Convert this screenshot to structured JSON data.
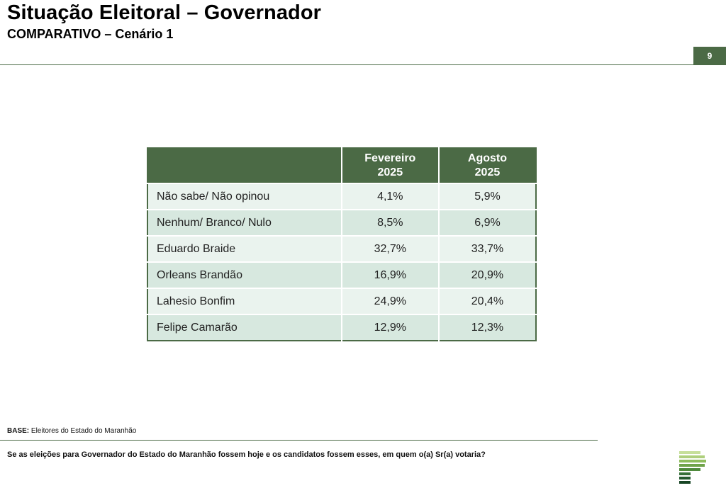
{
  "header": {
    "title": "Situação Eleitoral – Governador",
    "subtitle": "COMPARATIVO – Cenário 1",
    "page_number": "9"
  },
  "table": {
    "columns": [
      {
        "line1": "Fevereiro",
        "line2": "2025"
      },
      {
        "line1": "Agosto",
        "line2": "2025"
      }
    ],
    "rows": [
      {
        "label": "Não sabe/ Não opinou",
        "values": [
          "4,1%",
          "5,9%"
        ]
      },
      {
        "label": "Nenhum/ Branco/ Nulo",
        "values": [
          "8,5%",
          "6,9%"
        ]
      },
      {
        "label": "Eduardo Braide",
        "values": [
          "32,7%",
          "33,7%"
        ]
      },
      {
        "label": "Orleans Brandão",
        "values": [
          "16,9%",
          "20,9%"
        ]
      },
      {
        "label": "Lahesio Bonfim",
        "values": [
          "24,9%",
          "20,4%"
        ]
      },
      {
        "label": "Felipe Camarão",
        "values": [
          "12,9%",
          "12,3%"
        ]
      }
    ]
  },
  "footer": {
    "base_label": "BASE:",
    "base_text": "Eleitores do Estado do Maranhão",
    "question": "Se as eleições para Governador do Estado do Maranhão fossem hoje e os candidatos fossem esses, em quem o(a)  Sr(a) votaria?"
  },
  "logo": {
    "icon": "brand-logo-icon"
  },
  "colors": {
    "accent": "#4b6a45",
    "row_light": "#eaf3ee",
    "row_dark": "#d7e8df"
  }
}
